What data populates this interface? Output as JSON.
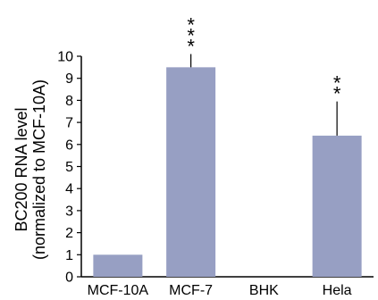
{
  "chart_data": {
    "type": "bar",
    "categories": [
      "MCF-10A",
      "MCF-7",
      "BHK",
      "Hela"
    ],
    "values": [
      1.0,
      9.5,
      0,
      6.4
    ],
    "error_upper": [
      null,
      10.1,
      null,
      7.95
    ],
    "significance": [
      "",
      "* * *",
      "",
      "* *"
    ],
    "ylabel_line1": "BC200 RNA level",
    "ylabel_line2": "(normalized to MCF-10A)",
    "ylim": [
      0,
      10
    ],
    "yticks": [
      "0",
      "1",
      "2",
      "3",
      "4",
      "5",
      "6",
      "7",
      "8",
      "9",
      "10"
    ],
    "bar_color": "#979fc3",
    "grid": false
  }
}
